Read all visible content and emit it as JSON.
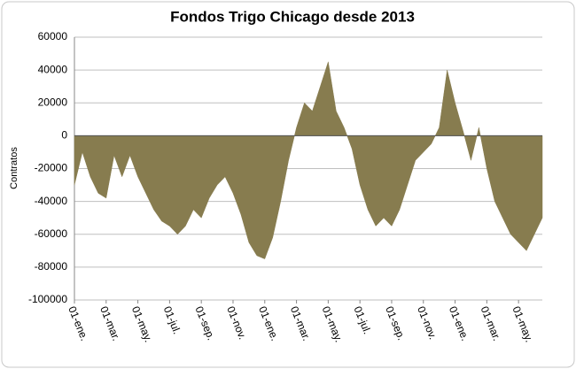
{
  "chart_data": {
    "type": "area",
    "title": "Fondos Trigo Chicago desde 2013",
    "y_label": "Contratos",
    "categories": [
      "01-ene.",
      null,
      null,
      null,
      "01-mar.",
      null,
      null,
      null,
      "01-may.",
      null,
      null,
      null,
      "01-jul.",
      null,
      null,
      null,
      "01-sep.",
      null,
      null,
      null,
      "01-nov.",
      null,
      null,
      null,
      "01-ene.",
      null,
      null,
      null,
      "01-mar.",
      null,
      null,
      null,
      "01-may.",
      null,
      null,
      null,
      "01-jul.",
      null,
      null,
      null,
      "01-sep.",
      null,
      null,
      null,
      "01-nov.",
      null,
      null,
      null,
      "01-ene.",
      null,
      null,
      null,
      "01-mar.",
      null,
      null,
      null,
      "01-may.",
      null,
      null,
      null
    ],
    "values": [
      -30000,
      -10000,
      -25000,
      -35000,
      -38000,
      -12000,
      -25000,
      -12000,
      -25000,
      -35000,
      -45000,
      -52000,
      -55000,
      -60000,
      -55000,
      -45000,
      -50000,
      -38000,
      -30000,
      -25000,
      -35000,
      -48000,
      -65000,
      -73000,
      -75000,
      -62000,
      -40000,
      -15000,
      5000,
      20000,
      15000,
      30000,
      45000,
      15000,
      5000,
      -8000,
      -30000,
      -45000,
      -55000,
      -50000,
      -55000,
      -45000,
      -30000,
      -15000,
      -10000,
      -5000,
      5000,
      40000,
      20000,
      3000,
      -15000,
      5000,
      -20000,
      -40000,
      -50000,
      -60000,
      -65000,
      -70000,
      -60000,
      -50000
    ],
    "color": "#877c4f",
    "ylim": [
      -100000,
      60000
    ],
    "yticks": [
      -100000,
      -80000,
      -60000,
      -40000,
      -20000,
      0,
      20000,
      40000,
      60000
    ],
    "grid": true
  }
}
